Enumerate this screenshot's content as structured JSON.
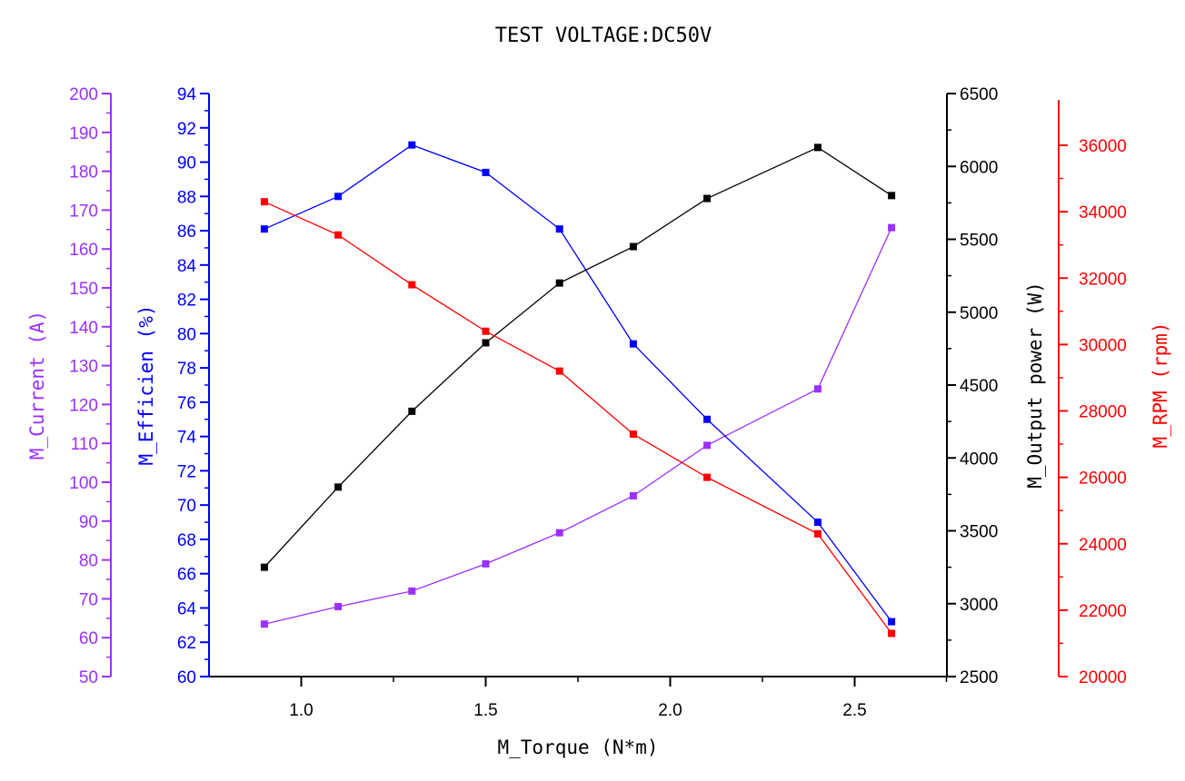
{
  "chart_data": {
    "type": "line",
    "title": "TEST VOLTAGE:DC50V",
    "x": [
      0.9,
      1.1,
      1.3,
      1.5,
      1.7,
      1.9,
      2.1,
      2.4,
      2.6
    ],
    "xlabel": "M_Torque (N*m)",
    "xlim": [
      0.75,
      2.75
    ],
    "xticks": [
      "1.0",
      "1.5",
      "2.0",
      "2.5"
    ],
    "axes": [
      {
        "id": "current",
        "label": "M_Current (A)",
        "color": "#9b30ff",
        "side": "left-outer",
        "lim": [
          50,
          200
        ],
        "ticks": [
          "50",
          "60",
          "70",
          "80",
          "90",
          "100",
          "110",
          "120",
          "130",
          "140",
          "150",
          "160",
          "170",
          "180",
          "190",
          "200"
        ]
      },
      {
        "id": "efficiency",
        "label": "M_Efficien (%)",
        "color": "#0000ff",
        "side": "left-inner",
        "lim": [
          60,
          94
        ],
        "ticks": [
          "60",
          "62",
          "64",
          "66",
          "68",
          "70",
          "72",
          "74",
          "76",
          "78",
          "80",
          "82",
          "84",
          "86",
          "88",
          "90",
          "92",
          "94"
        ]
      },
      {
        "id": "power",
        "label": "M_Output power (W)",
        "color": "#000000",
        "side": "right-inner",
        "lim": [
          2500,
          6500
        ],
        "ticks": [
          "2500",
          "3000",
          "3500",
          "4000",
          "4500",
          "5000",
          "5500",
          "6000",
          "6500"
        ]
      },
      {
        "id": "rpm",
        "label": "M_RPM (rpm)",
        "color": "#ff0000",
        "side": "right-outer",
        "lim": [
          20000,
          38000
        ],
        "ticks": [
          "20000",
          "22000",
          "24000",
          "26000",
          "28000",
          "30000",
          "32000",
          "34000",
          "36000"
        ]
      }
    ],
    "series": [
      {
        "axis": "current",
        "color": "#9b30ff",
        "values": [
          63.5,
          68,
          72,
          79,
          87,
          96.5,
          109.5,
          124,
          165.5
        ]
      },
      {
        "axis": "efficiency",
        "color": "#0000ff",
        "values": [
          86.1,
          88.0,
          91.0,
          89.4,
          86.1,
          79.4,
          75.0,
          69.0,
          63.2
        ]
      },
      {
        "axis": "power",
        "color": "#000000",
        "values": [
          3250,
          3800,
          4320,
          4790,
          5200,
          5450,
          5780,
          6130,
          5800
        ]
      },
      {
        "axis": "rpm",
        "color": "#ff0000",
        "values": [
          34300,
          33300,
          31800,
          30400,
          29200,
          27300,
          26000,
          24300,
          21300
        ]
      }
    ]
  }
}
